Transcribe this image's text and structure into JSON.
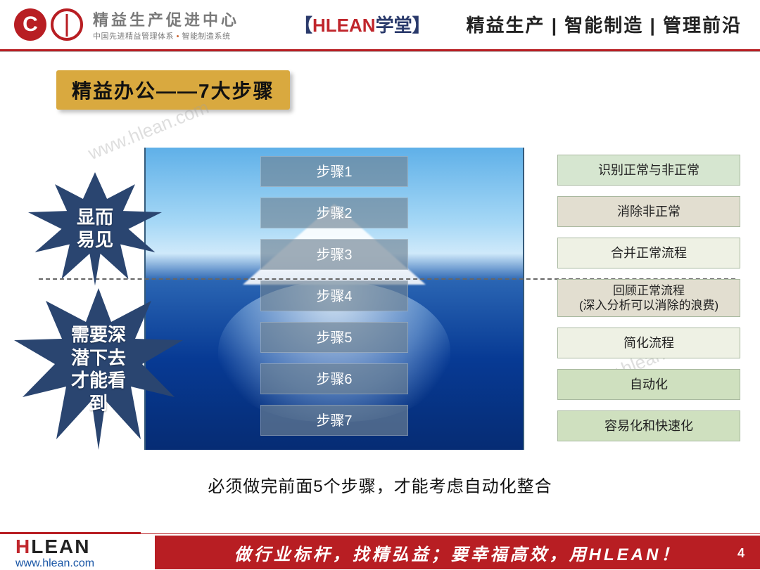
{
  "header": {
    "logo_letter": "C",
    "logo_title_cn": "精益生产促进中心",
    "logo_sub_a": "中国先进精益管理体系",
    "logo_sub_b": "智能制造系统",
    "brand_prefix": "【",
    "brand_red": "HLEAN",
    "brand_blue": "学堂",
    "brand_suffix": "】",
    "nav": "精益生产 | 智能制造 | 管理前沿"
  },
  "title": "精益办公——7大步骤",
  "bursts": {
    "top": "显而\n易见",
    "bottom": "需要深\n潜下去\n才能看\n到"
  },
  "iceberg": {
    "waterline_index": 3,
    "steps": [
      "步骤1",
      "步骤2",
      "步骤3",
      "步骤4",
      "步骤5",
      "步骤6",
      "步骤7"
    ]
  },
  "descriptions": [
    {
      "text": "识别正常与非正常",
      "bg": "#d6e6d0"
    },
    {
      "text": "消除非正常",
      "bg": "#e2ded0"
    },
    {
      "text": "合并正常流程",
      "bg": "#eef1e4"
    },
    {
      "text": "回顾正常流程\n(深入分析可以消除的浪费)",
      "bg": "#e2ded0",
      "tall": true
    },
    {
      "text": "简化流程",
      "bg": "#eef1e4"
    },
    {
      "text": "自动化",
      "bg": "#cfe0bf"
    },
    {
      "text": "容易化和快速化",
      "bg": "#cfe0bf"
    }
  ],
  "caption": "必须做完前面5个步骤，才能考虑自动化整合",
  "watermark": "www.hlean.com",
  "footer": {
    "logo_h": "H",
    "logo_rest": "LEAN",
    "url": "www.hlean.com",
    "slogan": "做行业标杆，找精弘益；要幸福高效，用HLEAN！",
    "page": "4"
  },
  "colors": {
    "brand_red": "#b81e23",
    "accent_red": "#c0262c",
    "title_bg": "#d9a93f",
    "burst_fill": "#2a4570",
    "sky_top": "#5fb0e8",
    "sea_deep": "#062c74",
    "desc_border": "#a9b9a0"
  }
}
